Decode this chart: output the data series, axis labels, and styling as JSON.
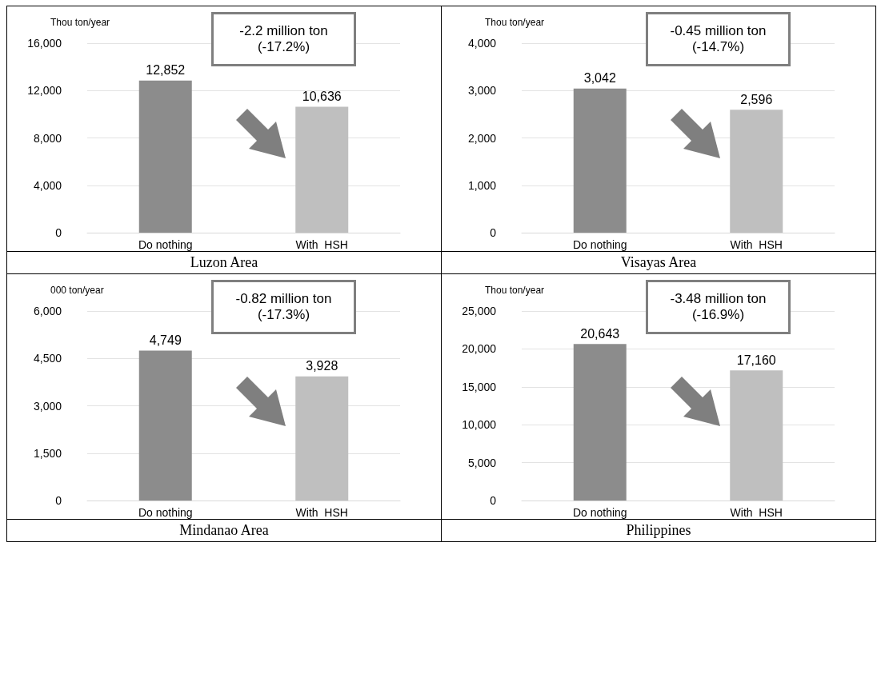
{
  "chart_data": [
    {
      "type": "bar",
      "title": "Luzon Area",
      "ylabel": "Thou ton/year",
      "annotations": [
        "-2.2 million ton\n(-17.2%)"
      ],
      "categories": [
        "Do nothing",
        "With  HSH"
      ],
      "values": [
        12852,
        10636
      ],
      "value_labels": [
        "12,852",
        "10,636"
      ],
      "colors": [
        "#8c8c8c",
        "#bfbfbf"
      ],
      "grid": "y",
      "ylim": [
        0,
        16000
      ],
      "yticks": [
        {
          "value": 0,
          "label": "0"
        },
        {
          "value": 4000,
          "label": "4,000"
        },
        {
          "value": 8000,
          "label": "8,000"
        },
        {
          "value": 12000,
          "label": "12,000"
        },
        {
          "value": 16000,
          "label": "16,000"
        }
      ]
    },
    {
      "type": "bar",
      "title": "Visayas Area",
      "ylabel": "Thou ton/year",
      "annotations": [
        "-0.45 million ton\n(-14.7%)"
      ],
      "categories": [
        "Do nothing",
        "With  HSH"
      ],
      "values": [
        3042,
        2596
      ],
      "value_labels": [
        "3,042",
        "2,596"
      ],
      "colors": [
        "#8c8c8c",
        "#bfbfbf"
      ],
      "grid": "y",
      "ylim": [
        0,
        4000
      ],
      "yticks": [
        {
          "value": 0,
          "label": "0"
        },
        {
          "value": 1000,
          "label": "1,000"
        },
        {
          "value": 2000,
          "label": "2,000"
        },
        {
          "value": 3000,
          "label": "3,000"
        },
        {
          "value": 4000,
          "label": "4,000"
        }
      ]
    },
    {
      "type": "bar",
      "title": "Mindanao Area",
      "ylabel": "000 ton/year",
      "annotations": [
        "-0.82 million ton\n(-17.3%)"
      ],
      "categories": [
        "Do nothing",
        "With  HSH"
      ],
      "values": [
        4749,
        3928
      ],
      "value_labels": [
        "4,749",
        "3,928"
      ],
      "colors": [
        "#8c8c8c",
        "#bfbfbf"
      ],
      "grid": "y",
      "ylim": [
        0,
        6000
      ],
      "yticks": [
        {
          "value": 0,
          "label": "0"
        },
        {
          "value": 1500,
          "label": "1,500"
        },
        {
          "value": 3000,
          "label": "3,000"
        },
        {
          "value": 4500,
          "label": "4,500"
        },
        {
          "value": 6000,
          "label": "6,000"
        }
      ]
    },
    {
      "type": "bar",
      "title": "Philippines",
      "ylabel": "Thou ton/year",
      "annotations": [
        "-3.48 million ton\n(-16.9%)"
      ],
      "categories": [
        "Do nothing",
        "With  HSH"
      ],
      "values": [
        20643,
        17160
      ],
      "value_labels": [
        "20,643",
        "17,160"
      ],
      "colors": [
        "#8c8c8c",
        "#bfbfbf"
      ],
      "grid": "y",
      "ylim": [
        0,
        25000
      ],
      "yticks": [
        {
          "value": 0,
          "label": "0"
        },
        {
          "value": 5000,
          "label": "5,000"
        },
        {
          "value": 10000,
          "label": "10,000"
        },
        {
          "value": 15000,
          "label": "15,000"
        },
        {
          "value": 20000,
          "label": "20,000"
        },
        {
          "value": 25000,
          "label": "25,000"
        }
      ]
    }
  ]
}
